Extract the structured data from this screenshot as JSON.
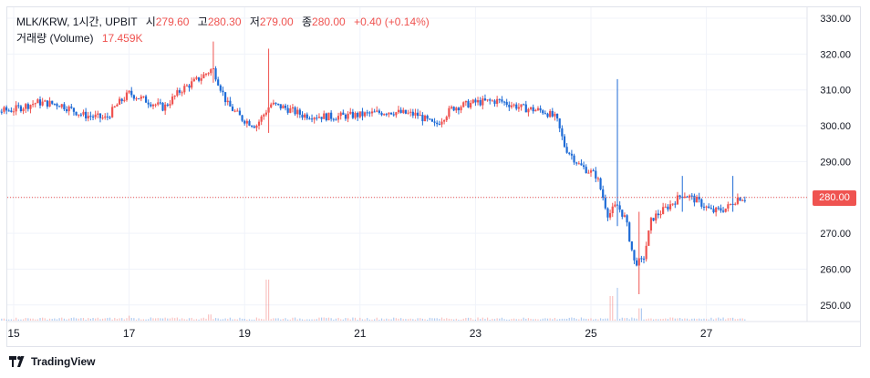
{
  "legend": {
    "symbol": "MLK/KRW, 1시간, UPBIT",
    "open_label": "시",
    "open": "279.60",
    "high_label": "고",
    "high": "280.30",
    "low_label": "저",
    "low": "279.00",
    "close_label": "종",
    "close": "280.00",
    "change": "+0.40 (+0.14%)",
    "volume_label": "거래량 (Volume)",
    "volume": "17.459K"
  },
  "price_badge": "280.00",
  "branding": "TradingView",
  "colors": {
    "up": "#ef5350",
    "down": "#1e6bd6",
    "grid": "#f0f3fa",
    "last_price_line": "#ef5350",
    "badge": "#ef5350"
  },
  "chart_data": {
    "type": "candlestick",
    "title": "MLK/KRW, 1시간, UPBIT",
    "interval": "1 hour",
    "x_tick_labels": [
      "15",
      "17",
      "19",
      "21",
      "23",
      "25",
      "27"
    ],
    "y_tick_labels": [
      "330.00",
      "320.00",
      "310.00",
      "300.00",
      "290.00",
      "280.00",
      "270.00",
      "260.00",
      "250.00"
    ],
    "ylim": [
      246,
      334
    ],
    "last_price": 280.0,
    "volume_last": "17.459K",
    "grid": true,
    "x_day_start": 14,
    "x_day_end": 28,
    "price_path": [
      {
        "day": 14.0,
        "price": 304.5
      },
      {
        "day": 14.5,
        "price": 303.5
      },
      {
        "day": 15.0,
        "price": 304.5
      },
      {
        "day": 15.4,
        "price": 306.5
      },
      {
        "day": 15.8,
        "price": 306
      },
      {
        "day": 16.2,
        "price": 303
      },
      {
        "day": 16.6,
        "price": 302
      },
      {
        "day": 16.8,
        "price": 306
      },
      {
        "day": 17.0,
        "price": 309
      },
      {
        "day": 17.3,
        "price": 307
      },
      {
        "day": 17.6,
        "price": 305
      },
      {
        "day": 17.9,
        "price": 310
      },
      {
        "day": 18.2,
        "price": 313
      },
      {
        "day": 18.45,
        "price": 316
      },
      {
        "day": 18.7,
        "price": 306
      },
      {
        "day": 18.95,
        "price": 302
      },
      {
        "day": 19.2,
        "price": 300
      },
      {
        "day": 19.45,
        "price": 306
      },
      {
        "day": 19.7,
        "price": 305
      },
      {
        "day": 20.0,
        "price": 303
      },
      {
        "day": 20.5,
        "price": 302.5
      },
      {
        "day": 21.0,
        "price": 303
      },
      {
        "day": 21.5,
        "price": 304
      },
      {
        "day": 22.0,
        "price": 303
      },
      {
        "day": 22.3,
        "price": 300
      },
      {
        "day": 22.6,
        "price": 305
      },
      {
        "day": 23.0,
        "price": 306.5
      },
      {
        "day": 23.4,
        "price": 307
      },
      {
        "day": 23.8,
        "price": 305
      },
      {
        "day": 24.2,
        "price": 304
      },
      {
        "day": 24.4,
        "price": 302
      },
      {
        "day": 24.55,
        "price": 294
      },
      {
        "day": 24.8,
        "price": 289
      },
      {
        "day": 25.1,
        "price": 286
      },
      {
        "day": 25.3,
        "price": 275
      },
      {
        "day": 25.45,
        "price": 278
      },
      {
        "day": 25.6,
        "price": 274
      },
      {
        "day": 25.75,
        "price": 262
      },
      {
        "day": 25.9,
        "price": 262
      },
      {
        "day": 26.05,
        "price": 274
      },
      {
        "day": 26.3,
        "price": 277
      },
      {
        "day": 26.6,
        "price": 281
      },
      {
        "day": 26.85,
        "price": 279
      },
      {
        "day": 27.1,
        "price": 276
      },
      {
        "day": 27.35,
        "price": 277
      },
      {
        "day": 27.55,
        "price": 280
      },
      {
        "day": 27.7,
        "price": 279.8
      }
    ],
    "spikes": [
      {
        "day": 18.45,
        "high": 323.5,
        "low": 312
      },
      {
        "day": 19.4,
        "high": 321.5,
        "low": 298
      },
      {
        "day": 25.45,
        "high": 313,
        "low": 272
      },
      {
        "day": 25.85,
        "high": 276,
        "low": 253
      },
      {
        "day": 26.6,
        "high": 286,
        "low": 276
      },
      {
        "day": 27.45,
        "high": 286,
        "low": 276
      }
    ],
    "volume_spikes": [
      {
        "day": 19.4,
        "value": 1.0
      },
      {
        "day": 25.35,
        "value": 0.6
      },
      {
        "day": 25.45,
        "value": 0.8
      },
      {
        "day": 25.85,
        "value": 0.3
      },
      {
        "day": 17.0,
        "value": 0.12
      },
      {
        "day": 18.4,
        "value": 0.15
      }
    ]
  }
}
